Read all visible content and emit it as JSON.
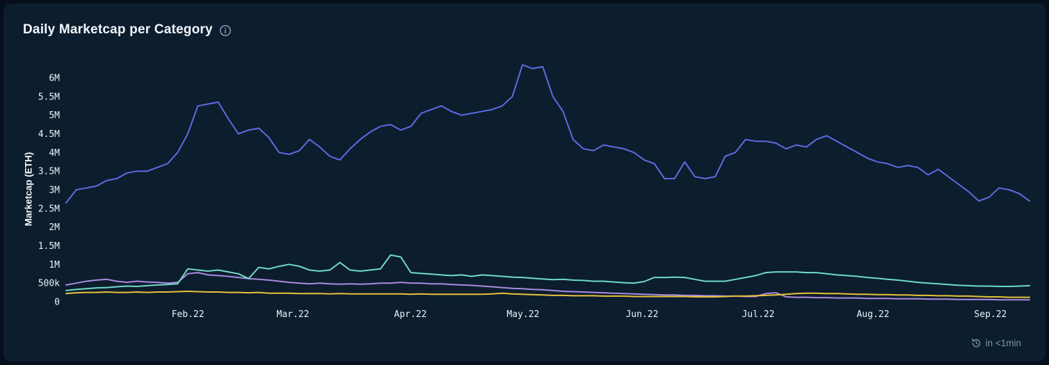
{
  "header": {
    "title": "Daily Marketcap per Category",
    "info_icon": "info-icon"
  },
  "footer": {
    "refresh_text": "in <1min",
    "icon": "refresh-clock-icon"
  },
  "colors": {
    "page_bg": "#060f1b",
    "card_bg": "#0c1d2e",
    "title_text": "#f2f6fa",
    "tick_text": "#edf2f7",
    "muted_text": "#7e94a8",
    "series_blue": "#5d6ce2",
    "series_teal": "#6edcc6",
    "series_purple": "#a98be0",
    "series_yellow": "#e9c23d"
  },
  "chart_data": {
    "type": "line",
    "title": "Daily Marketcap per Category",
    "xlabel": "",
    "ylabel": "Marketcap (ETH)",
    "value_unit": "millions of ETH",
    "ylim": [
      0,
      6.5
    ],
    "x_range": "mid-Jan 2022 to mid-Sep 2022",
    "grid": false,
    "legend_position": "none visible",
    "y_ticks": [
      {
        "label": "0",
        "value": 0
      },
      {
        "label": "500k",
        "value": 0.5
      },
      {
        "label": "1M",
        "value": 1
      },
      {
        "label": "1.5M",
        "value": 1.5
      },
      {
        "label": "2M",
        "value": 2
      },
      {
        "label": "2.5M",
        "value": 2.5
      },
      {
        "label": "3M",
        "value": 3
      },
      {
        "label": "3.5M",
        "value": 3.5
      },
      {
        "label": "4M",
        "value": 4
      },
      {
        "label": "4.5M",
        "value": 4.5
      },
      {
        "label": "5M",
        "value": 5
      },
      {
        "label": "5.5M",
        "value": 5.5
      },
      {
        "label": "6M",
        "value": 6
      }
    ],
    "x_ticks": [
      {
        "label": "Feb.22",
        "pos": 0.1264
      },
      {
        "label": "Mar.22",
        "pos": 0.2354
      },
      {
        "label": "Apr.22",
        "pos": 0.3574
      },
      {
        "label": "May.22",
        "pos": 0.4743
      },
      {
        "label": "Jun.22",
        "pos": 0.5978
      },
      {
        "label": "Jul.22",
        "pos": 0.7184
      },
      {
        "label": "Aug.22",
        "pos": 0.8375
      },
      {
        "label": "Sep.22",
        "pos": 0.9595
      }
    ],
    "series": [
      {
        "name": "purple",
        "color": "#a98be0",
        "values": [
          0.45,
          0.5,
          0.55,
          0.58,
          0.6,
          0.55,
          0.52,
          0.55,
          0.53,
          0.52,
          0.5,
          0.52,
          0.75,
          0.78,
          0.72,
          0.7,
          0.68,
          0.65,
          0.62,
          0.6,
          0.58,
          0.55,
          0.52,
          0.5,
          0.48,
          0.5,
          0.48,
          0.47,
          0.48,
          0.47,
          0.48,
          0.5,
          0.5,
          0.52,
          0.5,
          0.5,
          0.48,
          0.48,
          0.46,
          0.45,
          0.44,
          0.42,
          0.4,
          0.38,
          0.36,
          0.35,
          0.33,
          0.32,
          0.3,
          0.28,
          0.27,
          0.26,
          0.25,
          0.24,
          0.23,
          0.22,
          0.21,
          0.2,
          0.19,
          0.18,
          0.18,
          0.17,
          0.17,
          0.16,
          0.16,
          0.15,
          0.15,
          0.14,
          0.14,
          0.22,
          0.24,
          0.13,
          0.12,
          0.12,
          0.11,
          0.11,
          0.1,
          0.1,
          0.1,
          0.09,
          0.09,
          0.09,
          0.08,
          0.08,
          0.08,
          0.07,
          0.07,
          0.07,
          0.06,
          0.06,
          0.06,
          0.06,
          0.05,
          0.05,
          0.05,
          0.05
        ]
      },
      {
        "name": "yellow",
        "color": "#e9c23d",
        "values": [
          0.22,
          0.24,
          0.25,
          0.25,
          0.26,
          0.25,
          0.25,
          0.26,
          0.25,
          0.26,
          0.26,
          0.27,
          0.28,
          0.27,
          0.26,
          0.26,
          0.25,
          0.25,
          0.24,
          0.25,
          0.23,
          0.23,
          0.23,
          0.22,
          0.22,
          0.22,
          0.21,
          0.22,
          0.21,
          0.21,
          0.21,
          0.21,
          0.21,
          0.21,
          0.2,
          0.21,
          0.2,
          0.2,
          0.2,
          0.2,
          0.2,
          0.2,
          0.21,
          0.23,
          0.21,
          0.2,
          0.19,
          0.18,
          0.17,
          0.17,
          0.16,
          0.16,
          0.16,
          0.15,
          0.15,
          0.15,
          0.14,
          0.14,
          0.14,
          0.14,
          0.14,
          0.14,
          0.13,
          0.13,
          0.13,
          0.14,
          0.15,
          0.15,
          0.16,
          0.17,
          0.18,
          0.2,
          0.22,
          0.23,
          0.23,
          0.22,
          0.22,
          0.21,
          0.2,
          0.2,
          0.19,
          0.19,
          0.18,
          0.18,
          0.17,
          0.17,
          0.16,
          0.16,
          0.15,
          0.15,
          0.14,
          0.13,
          0.13,
          0.12,
          0.12,
          0.12
        ]
      },
      {
        "name": "teal",
        "color": "#6edcc6",
        "values": [
          0.3,
          0.33,
          0.35,
          0.37,
          0.38,
          0.4,
          0.42,
          0.41,
          0.43,
          0.45,
          0.46,
          0.48,
          0.88,
          0.85,
          0.82,
          0.85,
          0.8,
          0.75,
          0.62,
          0.92,
          0.88,
          0.95,
          1.0,
          0.95,
          0.85,
          0.82,
          0.85,
          1.05,
          0.85,
          0.82,
          0.85,
          0.88,
          1.25,
          1.2,
          0.78,
          0.76,
          0.74,
          0.72,
          0.7,
          0.72,
          0.68,
          0.72,
          0.7,
          0.68,
          0.66,
          0.65,
          0.63,
          0.61,
          0.59,
          0.6,
          0.58,
          0.57,
          0.55,
          0.55,
          0.53,
          0.51,
          0.5,
          0.54,
          0.65,
          0.65,
          0.66,
          0.65,
          0.6,
          0.55,
          0.55,
          0.55,
          0.6,
          0.65,
          0.7,
          0.78,
          0.8,
          0.8,
          0.8,
          0.78,
          0.78,
          0.75,
          0.72,
          0.7,
          0.68,
          0.65,
          0.63,
          0.6,
          0.58,
          0.55,
          0.52,
          0.5,
          0.48,
          0.46,
          0.44,
          0.43,
          0.42,
          0.42,
          0.41,
          0.41,
          0.42,
          0.43
        ]
      },
      {
        "name": "blue",
        "color": "#5d6ce2",
        "values": [
          2.65,
          3.0,
          3.05,
          3.1,
          3.25,
          3.3,
          3.45,
          3.5,
          3.5,
          3.6,
          3.7,
          4.0,
          4.5,
          5.25,
          5.3,
          5.35,
          4.9,
          4.5,
          4.6,
          4.65,
          4.4,
          4.0,
          3.95,
          4.05,
          4.35,
          4.15,
          3.9,
          3.8,
          4.1,
          4.35,
          4.55,
          4.7,
          4.75,
          4.6,
          4.7,
          5.05,
          5.15,
          5.25,
          5.1,
          5.0,
          5.05,
          5.1,
          5.15,
          5.25,
          5.5,
          6.35,
          6.25,
          6.3,
          5.5,
          5.1,
          4.35,
          4.1,
          4.05,
          4.2,
          4.15,
          4.1,
          4.0,
          3.8,
          3.7,
          3.3,
          3.3,
          3.75,
          3.35,
          3.3,
          3.35,
          3.9,
          4.0,
          4.35,
          4.3,
          4.3,
          4.25,
          4.1,
          4.2,
          4.15,
          4.35,
          4.45,
          4.3,
          4.15,
          4.0,
          3.85,
          3.75,
          3.7,
          3.6,
          3.65,
          3.6,
          3.4,
          3.55,
          3.35,
          3.15,
          2.95,
          2.7,
          2.8,
          3.05,
          3.0,
          2.9,
          2.7
        ]
      }
    ]
  }
}
